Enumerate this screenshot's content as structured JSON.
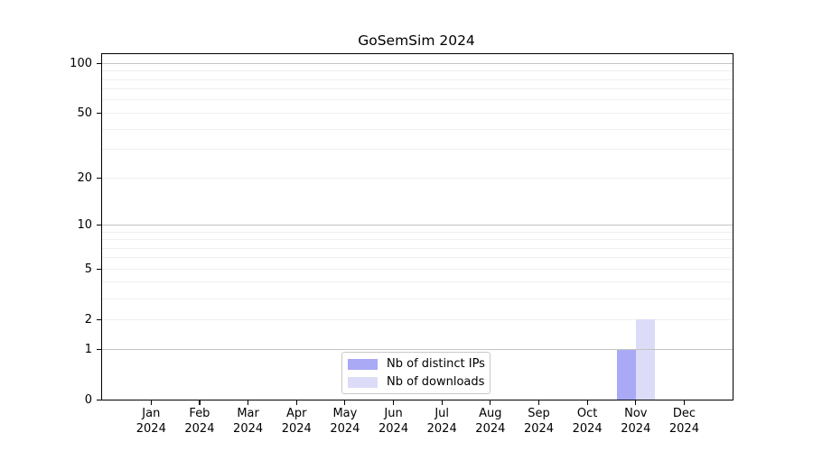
{
  "chart_data": {
    "type": "bar",
    "title": "GoSemSim 2024",
    "x_tick_year": "2024",
    "categories": [
      "Jan",
      "Feb",
      "Mar",
      "Apr",
      "May",
      "Jun",
      "Jul",
      "Aug",
      "Sep",
      "Oct",
      "Nov",
      "Dec"
    ],
    "series": [
      {
        "name": "Nb of distinct IPs",
        "color": "#a9a9f5",
        "values": [
          0,
          0,
          0,
          0,
          0,
          0,
          0,
          0,
          0,
          0,
          1,
          0
        ]
      },
      {
        "name": "Nb of downloads",
        "color": "#dcdcf8",
        "values": [
          0,
          0,
          0,
          0,
          0,
          0,
          0,
          0,
          0,
          0,
          2,
          0
        ]
      }
    ],
    "xlabel": "",
    "ylabel": "",
    "y_ticks": [
      0,
      1,
      2,
      5,
      10,
      20,
      50,
      100
    ],
    "y_scale": "log1p",
    "ylim": [
      0,
      114
    ],
    "grid": {
      "major_values": [
        1,
        10,
        100
      ],
      "minor_values": [
        2,
        3,
        4,
        5,
        6,
        7,
        8,
        9,
        20,
        30,
        40,
        50,
        60,
        70,
        80,
        90
      ],
      "major_color": "#c3c3c3",
      "minor_color": "#efefef"
    },
    "legend_position": "lower center inside",
    "axis_color": "#000000",
    "background_color": "#ffffff"
  }
}
